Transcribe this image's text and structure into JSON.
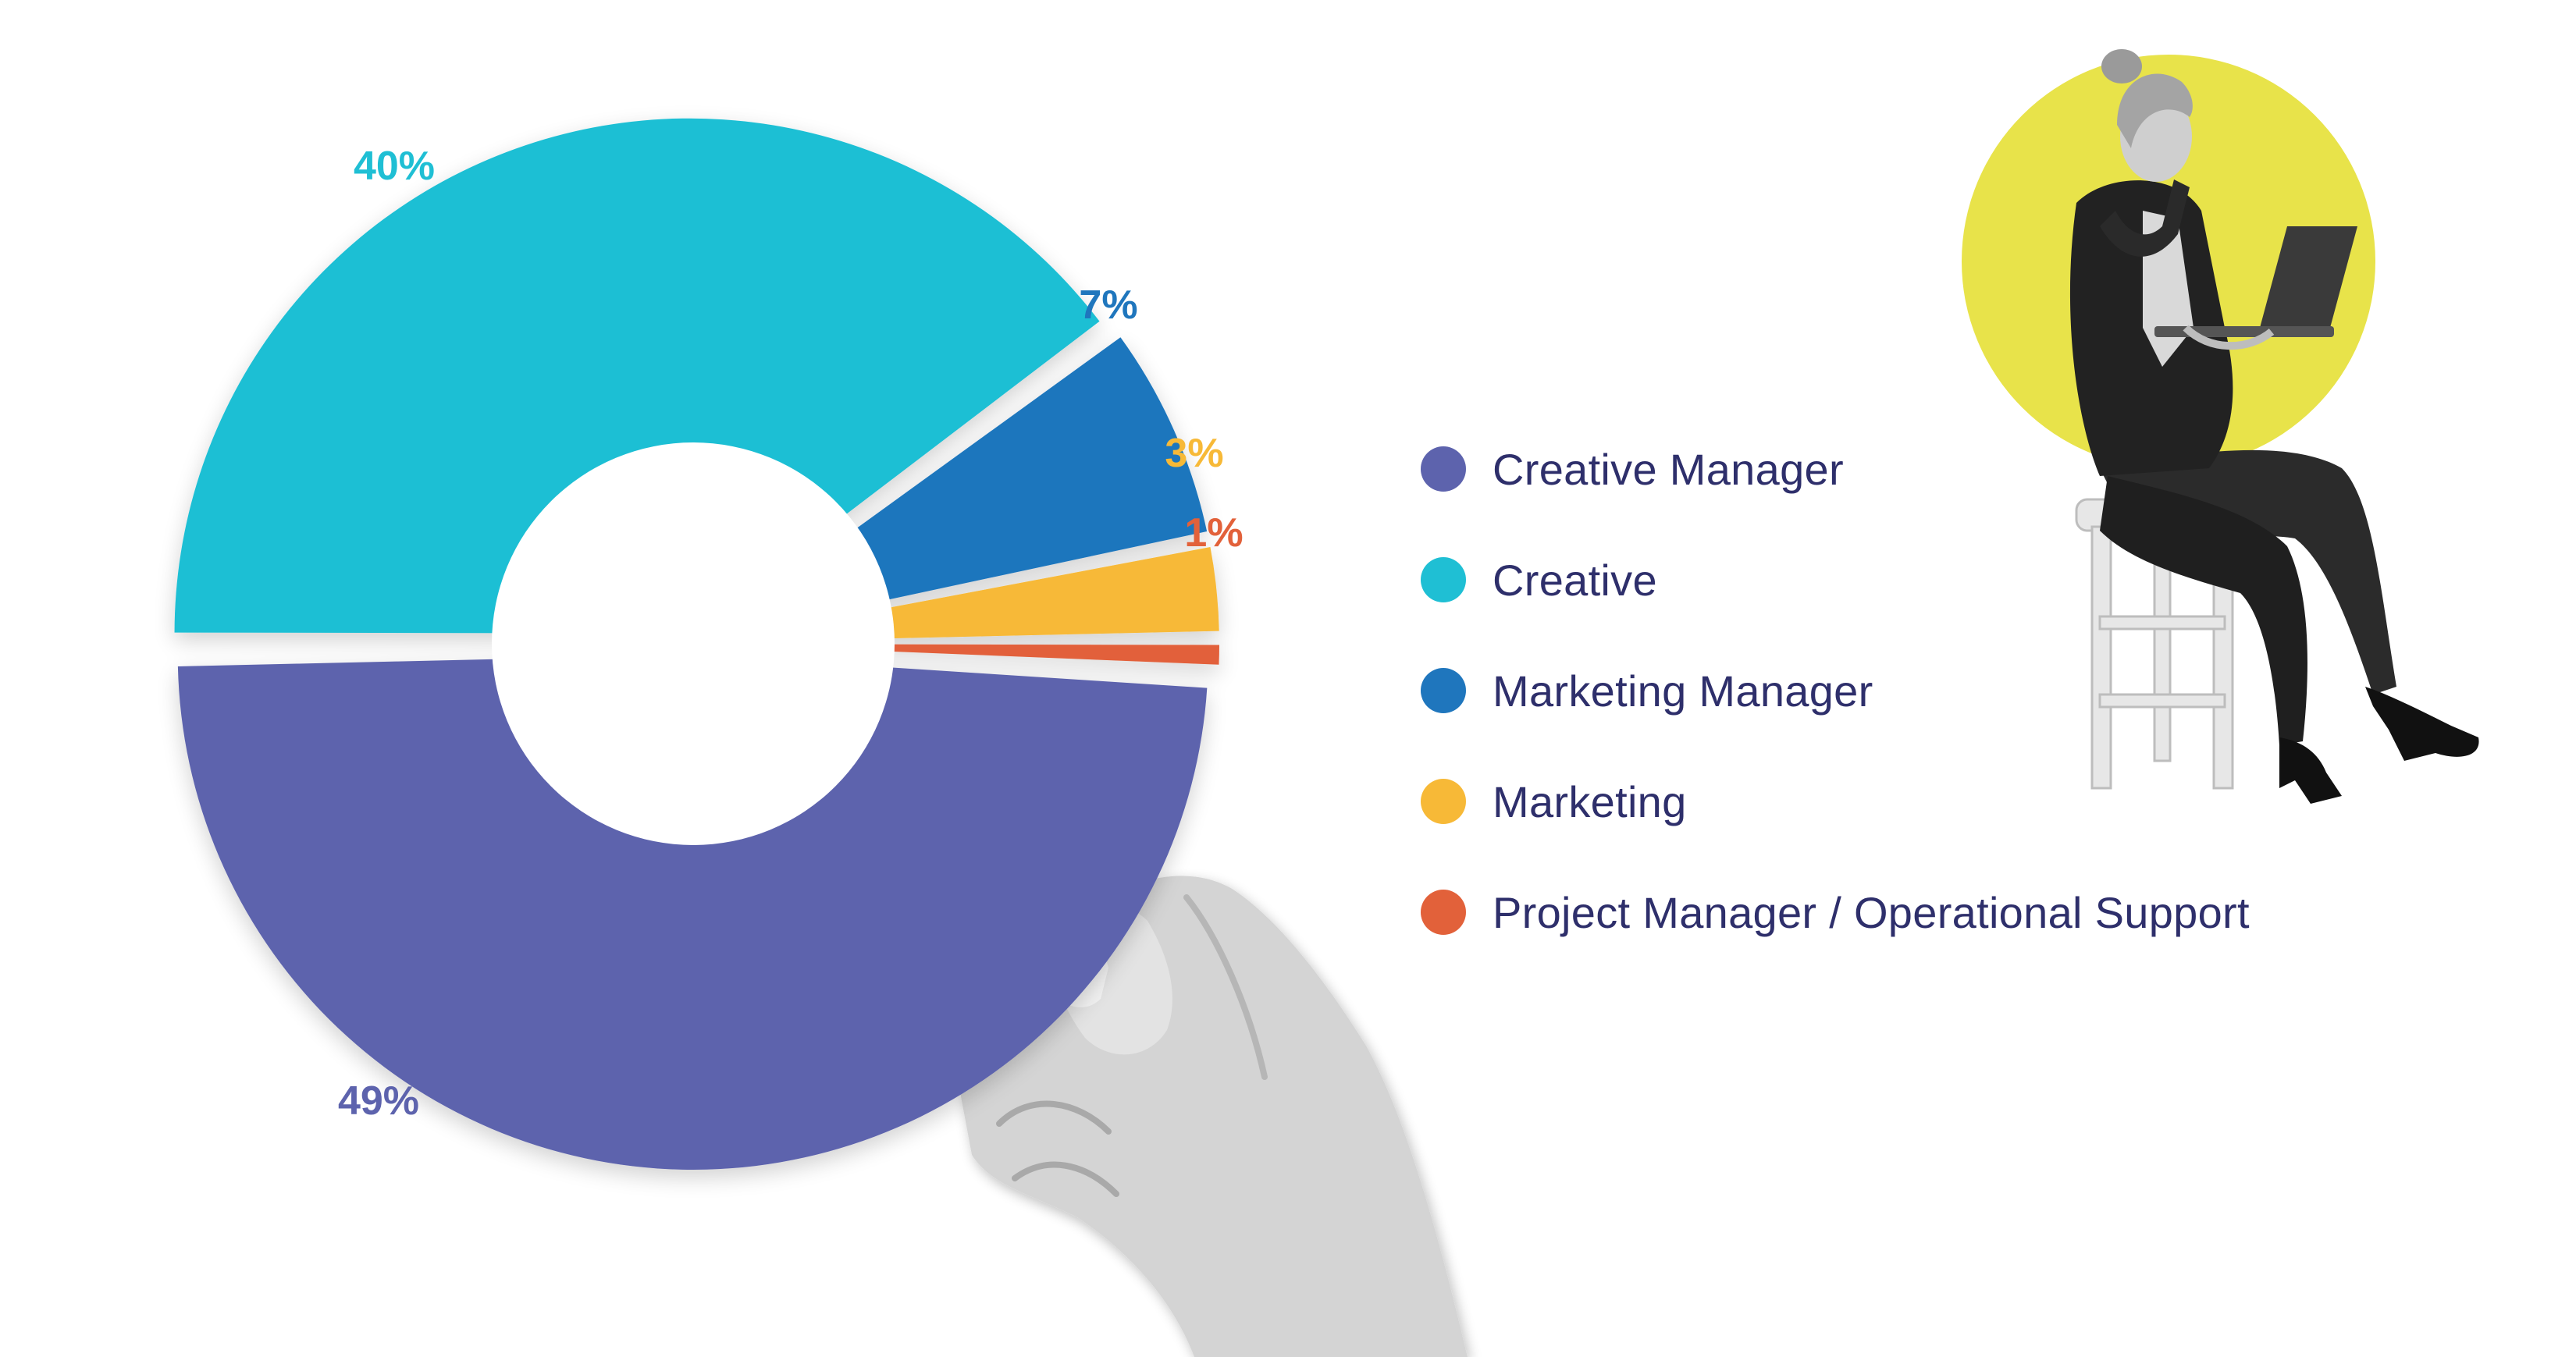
{
  "chart_data": {
    "type": "pie",
    "title": "",
    "slices": [
      {
        "label": "Creative Manager",
        "value": 49,
        "value_label": "49%",
        "color": "#5d63ad"
      },
      {
        "label": "Creative",
        "value": 40,
        "value_label": "40%",
        "color": "#1fbfd4"
      },
      {
        "label": "Marketing Manager",
        "value": 7,
        "value_label": "7%",
        "color": "#1f76bd"
      },
      {
        "label": "Marketing",
        "value": 3,
        "value_label": "3%",
        "color": "#f7b937"
      },
      {
        "label": "Project Manager / Operational Support",
        "value": 1,
        "value_label": "1%",
        "color": "#e2613a"
      }
    ],
    "donut": true,
    "legend_position": "right"
  },
  "legend": {
    "items": [
      {
        "label": "Creative Manager",
        "color": "#5d63ad"
      },
      {
        "label": "Creative",
        "color": "#1fbfd4"
      },
      {
        "label": "Marketing Manager",
        "color": "#1f76bd"
      },
      {
        "label": "Marketing",
        "color": "#f7b937"
      },
      {
        "label": "Project Manager / Operational Support",
        "color": "#e2613a"
      }
    ]
  },
  "decorations": {
    "hand_holding_chart": "hand-illustration",
    "woman_with_laptop": "person-illustration",
    "accent_circle_color": "#e8e34a"
  }
}
